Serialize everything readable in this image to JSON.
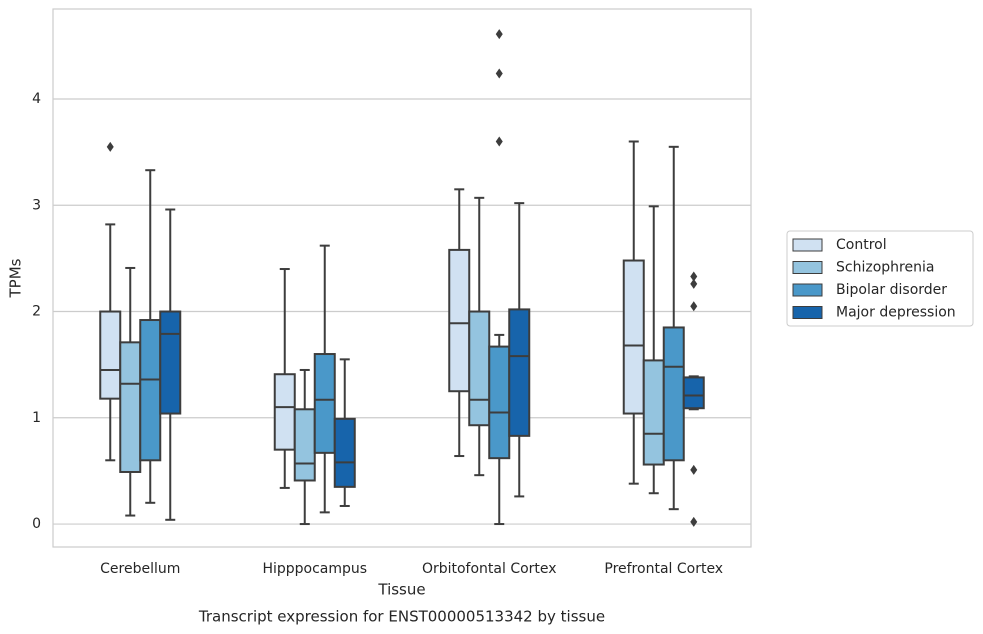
{
  "chart_data": {
    "type": "box",
    "title": "Transcript expression for ENST00000513342 by tissue",
    "x_label": "Tissue",
    "y_label": "TPMs",
    "categories": [
      "Cerebellum",
      "Hipppocampus",
      "Orbitofontal Cortex",
      "Prefrontal Cortex"
    ],
    "ylim": [
      -0.216,
      4.847
    ],
    "yticks": [
      0,
      1,
      2,
      3,
      4
    ],
    "grid": true,
    "legend": "right",
    "series": [
      {
        "name": "Control",
        "color": "#d0e1f2",
        "low": [
          0.6,
          0.34,
          0.64,
          0.38
        ],
        "q1": [
          1.18,
          0.7,
          1.25,
          1.04
        ],
        "median": [
          1.45,
          1.1,
          1.89,
          1.68
        ],
        "q3": [
          2.0,
          1.41,
          2.58,
          2.48
        ],
        "high": [
          2.82,
          2.4,
          3.15,
          3.6
        ],
        "outliers": [
          [
            3.55
          ],
          [],
          [],
          []
        ]
      },
      {
        "name": "Schizophrenia",
        "color": "#94c4df",
        "low": [
          0.08,
          0.0,
          0.46,
          0.29
        ],
        "q1": [
          0.49,
          0.41,
          0.93,
          0.56
        ],
        "median": [
          1.32,
          0.57,
          1.17,
          0.85
        ],
        "q3": [
          1.71,
          1.08,
          2.0,
          1.54
        ],
        "high": [
          2.41,
          1.45,
          3.07,
          2.99
        ],
        "outliers": [
          [],
          [],
          [],
          []
        ]
      },
      {
        "name": "Bipolar disorder",
        "color": "#4a98c9",
        "low": [
          0.2,
          0.11,
          0.0,
          0.14
        ],
        "q1": [
          0.6,
          0.67,
          0.62,
          0.6
        ],
        "median": [
          1.36,
          1.17,
          1.05,
          1.48
        ],
        "q3": [
          1.92,
          1.6,
          1.67,
          1.85
        ],
        "high": [
          3.33,
          2.62,
          1.78,
          3.55
        ],
        "outliers": [
          [],
          [],
          [
            4.61,
            4.24,
            3.6
          ],
          []
        ]
      },
      {
        "name": "Major depression",
        "color": "#1764ab",
        "low": [
          0.04,
          0.17,
          0.26,
          1.08
        ],
        "q1": [
          1.04,
          0.35,
          0.83,
          1.09
        ],
        "median": [
          1.79,
          0.58,
          1.58,
          1.21
        ],
        "q3": [
          2.0,
          0.99,
          2.02,
          1.38
        ],
        "high": [
          2.96,
          1.55,
          3.02,
          1.39
        ],
        "outliers": [
          [],
          [],
          [],
          [
            2.33,
            2.26,
            2.05,
            0.51,
            0.02
          ]
        ]
      }
    ]
  }
}
